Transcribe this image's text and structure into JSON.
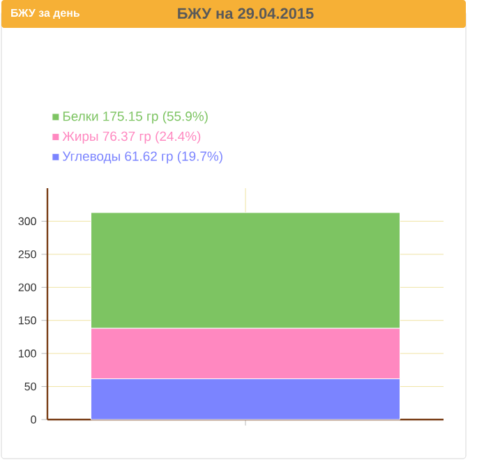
{
  "chart_data": {
    "type": "bar",
    "stacked": true,
    "title": "БЖУ на 29.04.2015",
    "annotations": [
      "БЖУ за день"
    ],
    "categories": [
      null
    ],
    "series": [
      {
        "name": "Углеводы 61.62 гр (19.7%)",
        "color": "#7b84ff",
        "values": [
          61.62
        ]
      },
      {
        "name": "Жиры 76.37 гр (24.4%)",
        "color": "#ff88c0",
        "values": [
          76.37
        ]
      },
      {
        "name": "Белки 175.15 гр (55.9%)",
        "color": "#7dc462",
        "values": [
          175.15
        ]
      }
    ],
    "ylim": [
      0,
      350
    ],
    "yticks": [
      0,
      50,
      100,
      150,
      200,
      250,
      300
    ],
    "grid": true,
    "legend": "top left"
  }
}
